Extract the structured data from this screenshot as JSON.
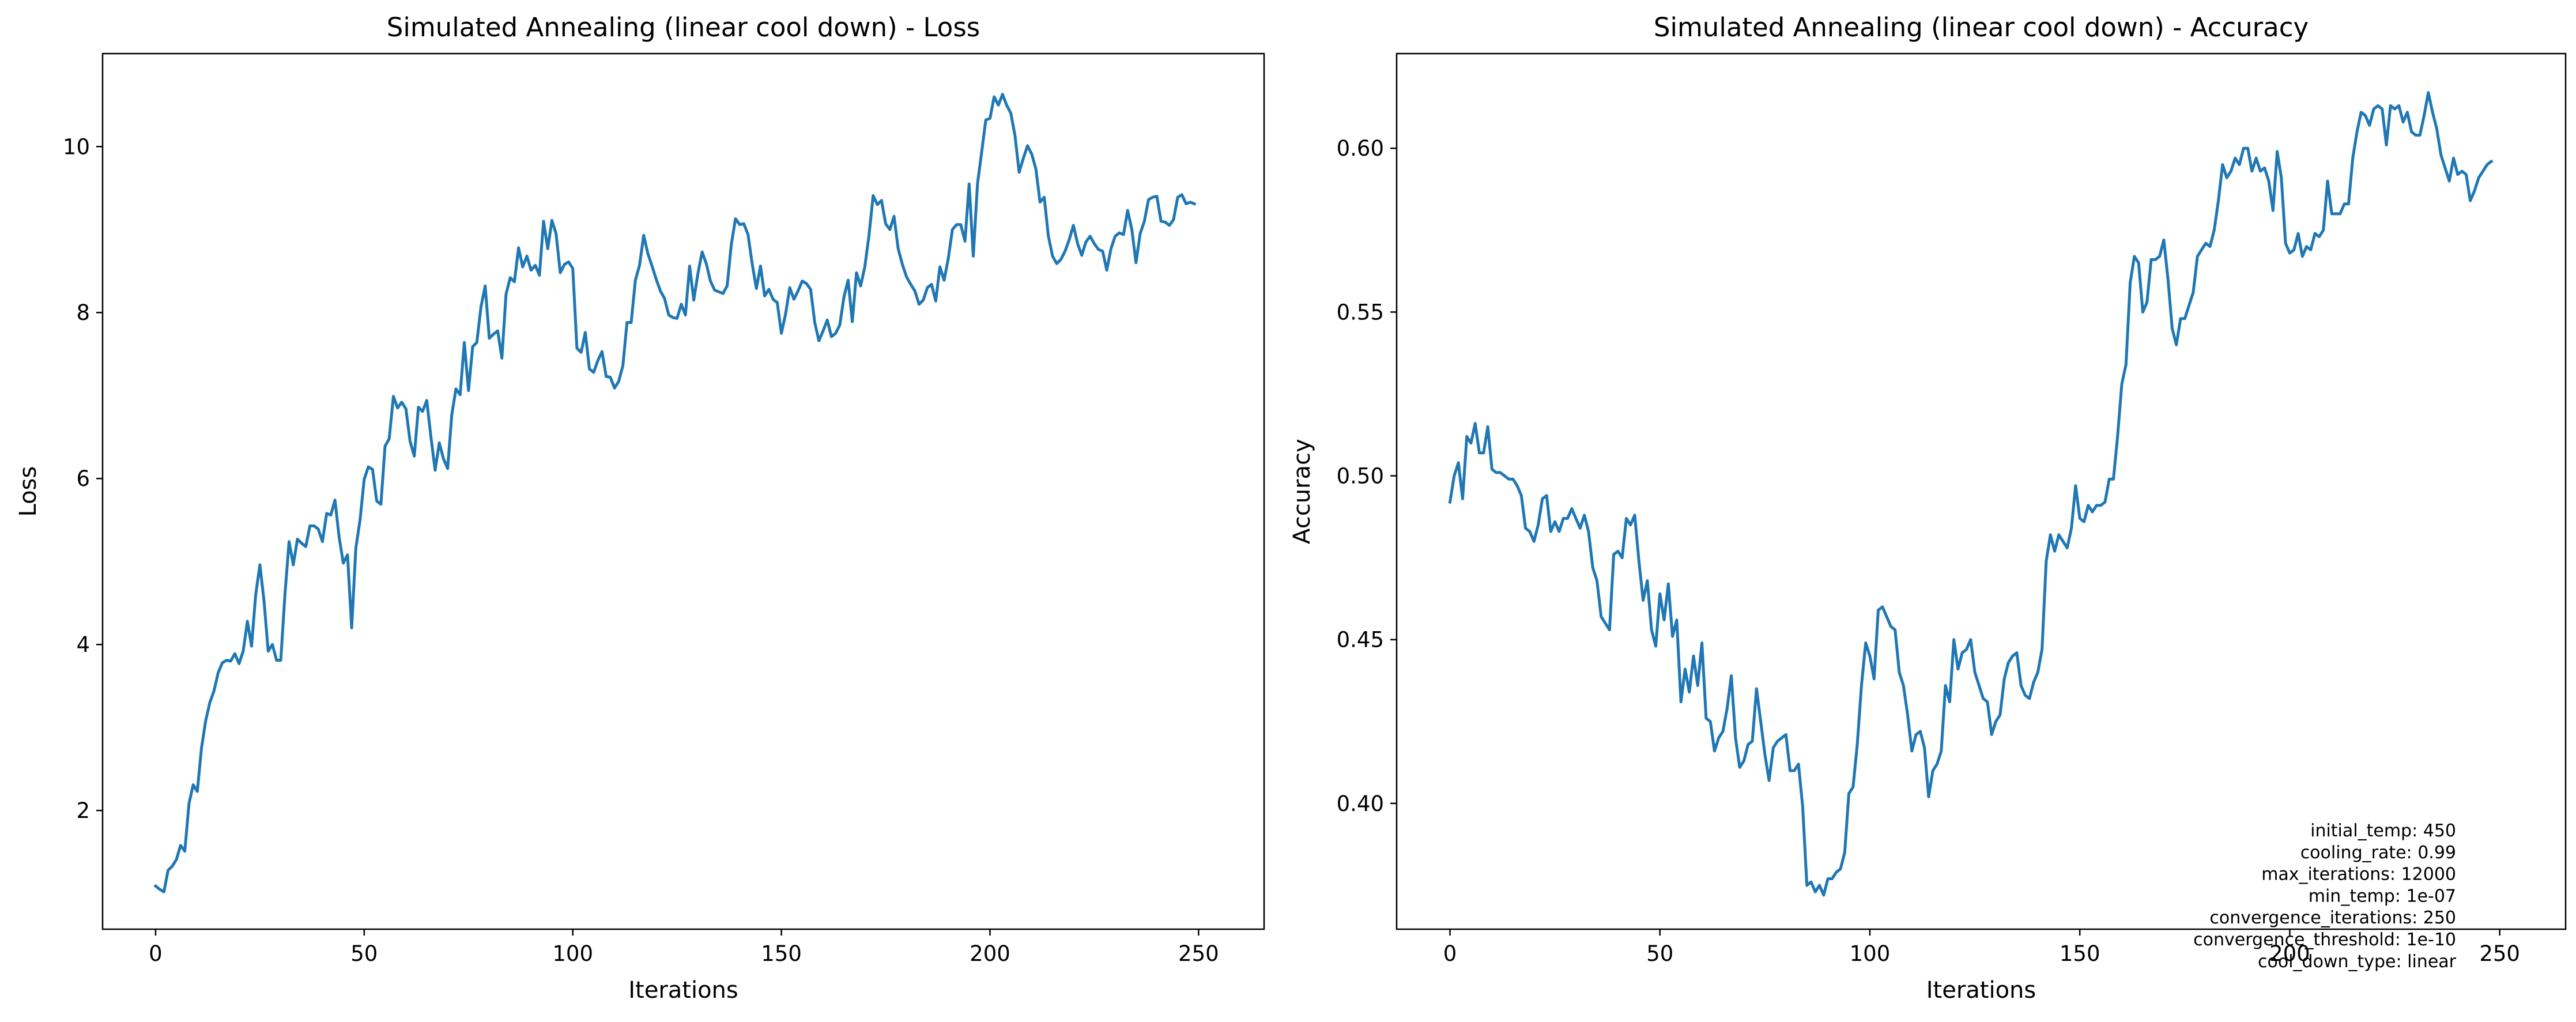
{
  "chart_data": [
    {
      "type": "line",
      "title": "Simulated Annealing (linear cool down) - Loss",
      "xlabel": "Iterations",
      "ylabel": "Loss",
      "xlim": [
        -12.7,
        265.7
      ],
      "ylim": [
        0.57,
        11.12
      ],
      "xticks": [
        0,
        50,
        100,
        150,
        200,
        250
      ],
      "yticks": [
        2,
        4,
        6,
        8,
        10
      ],
      "ytick_labels": [
        "2",
        "4",
        "6",
        "8",
        "10"
      ],
      "grid": false,
      "series": [
        {
          "color": "#1f77b4",
          "x_start": 0,
          "x_step": 1,
          "values": [
            1.09,
            1.05,
            1.02,
            1.28,
            1.33,
            1.41,
            1.58,
            1.51,
            2.08,
            2.31,
            2.23,
            2.75,
            3.08,
            3.3,
            3.44,
            3.66,
            3.78,
            3.81,
            3.8,
            3.89,
            3.77,
            3.92,
            4.28,
            3.98,
            4.6,
            4.96,
            4.52,
            3.92,
            4.0,
            3.81,
            3.81,
            4.6,
            5.24,
            4.96,
            5.27,
            5.22,
            5.18,
            5.43,
            5.43,
            5.39,
            5.24,
            5.58,
            5.56,
            5.74,
            5.29,
            4.98,
            5.08,
            4.2,
            5.16,
            5.5,
            5.99,
            6.14,
            6.11,
            5.73,
            5.69,
            6.39,
            6.48,
            6.99,
            6.85,
            6.92,
            6.84,
            6.45,
            6.27,
            6.86,
            6.81,
            6.94,
            6.5,
            6.1,
            6.43,
            6.24,
            6.12,
            6.77,
            7.08,
            7.01,
            7.64,
            7.06,
            7.59,
            7.64,
            8.07,
            8.32,
            7.69,
            7.74,
            7.78,
            7.45,
            8.22,
            8.42,
            8.37,
            8.78,
            8.55,
            8.68,
            8.51,
            8.57,
            8.45,
            9.1,
            8.77,
            9.11,
            8.95,
            8.48,
            8.58,
            8.61,
            8.53,
            7.57,
            7.52,
            7.76,
            7.32,
            7.28,
            7.42,
            7.53,
            7.23,
            7.22,
            7.09,
            7.17,
            7.36,
            7.88,
            7.88,
            8.39,
            8.57,
            8.93,
            8.71,
            8.56,
            8.4,
            8.26,
            8.17,
            7.97,
            7.94,
            7.93,
            8.1,
            7.97,
            8.56,
            8.15,
            8.47,
            8.73,
            8.59,
            8.38,
            8.27,
            8.25,
            8.23,
            8.32,
            8.82,
            9.13,
            9.06,
            9.07,
            8.94,
            8.59,
            8.29,
            8.56,
            8.2,
            8.28,
            8.16,
            8.12,
            7.75,
            7.98,
            8.3,
            8.16,
            8.26,
            8.38,
            8.35,
            8.28,
            7.88,
            7.66,
            7.78,
            7.91,
            7.71,
            7.75,
            7.85,
            8.19,
            8.39,
            7.89,
            8.48,
            8.32,
            8.55,
            8.93,
            9.41,
            9.3,
            9.35,
            9.07,
            9.0,
            9.16,
            8.77,
            8.58,
            8.43,
            8.34,
            8.26,
            8.1,
            8.15,
            8.3,
            8.34,
            8.14,
            8.55,
            8.39,
            8.65,
            9.0,
            9.06,
            9.06,
            8.86,
            9.55,
            8.68,
            9.55,
            9.93,
            10.32,
            10.34,
            10.6,
            10.5,
            10.63,
            10.5,
            10.4,
            10.13,
            9.69,
            9.86,
            10.01,
            9.91,
            9.73,
            9.33,
            9.39,
            8.92,
            8.68,
            8.59,
            8.64,
            8.74,
            8.88,
            9.05,
            8.83,
            8.69,
            8.85,
            8.92,
            8.83,
            8.76,
            8.74,
            8.51,
            8.77,
            8.92,
            8.96,
            8.94,
            9.23,
            9.0,
            8.6,
            8.95,
            9.1,
            9.36,
            9.39,
            9.4,
            9.1,
            9.09,
            9.05,
            9.12,
            9.39,
            9.42,
            9.31,
            9.33,
            9.31
          ]
        }
      ]
    },
    {
      "type": "line",
      "title": "Simulated Annealing (linear cool down) - Accuracy",
      "xlabel": "Iterations",
      "ylabel": "Accuracy",
      "xlim": [
        -12.7,
        265.7
      ],
      "ylim": [
        0.3616,
        0.6289
      ],
      "xticks": [
        0,
        50,
        100,
        150,
        200,
        250
      ],
      "yticks": [
        0.4,
        0.45,
        0.5,
        0.55,
        0.6
      ],
      "ytick_labels": [
        "0.40",
        "0.45",
        "0.50",
        "0.55",
        "0.60"
      ],
      "grid": false,
      "series": [
        {
          "color": "#1f77b4",
          "x_start": 0,
          "x_step": 1,
          "values": [
            0.492,
            0.5,
            0.504,
            0.493,
            0.512,
            0.51,
            0.516,
            0.507,
            0.507,
            0.515,
            0.502,
            0.501,
            0.501,
            0.5,
            0.499,
            0.499,
            0.497,
            0.494,
            0.484,
            0.483,
            0.48,
            0.485,
            0.493,
            0.494,
            0.483,
            0.486,
            0.483,
            0.487,
            0.487,
            0.49,
            0.487,
            0.484,
            0.488,
            0.483,
            0.472,
            0.468,
            0.457,
            0.455,
            0.453,
            0.476,
            0.477,
            0.475,
            0.487,
            0.485,
            0.488,
            0.474,
            0.462,
            0.468,
            0.453,
            0.448,
            0.464,
            0.456,
            0.467,
            0.451,
            0.456,
            0.431,
            0.441,
            0.434,
            0.445,
            0.436,
            0.449,
            0.426,
            0.425,
            0.416,
            0.42,
            0.422,
            0.429,
            0.439,
            0.42,
            0.411,
            0.413,
            0.418,
            0.419,
            0.435,
            0.425,
            0.415,
            0.407,
            0.417,
            0.419,
            0.42,
            0.421,
            0.41,
            0.41,
            0.412,
            0.399,
            0.375,
            0.376,
            0.373,
            0.375,
            0.372,
            0.377,
            0.377,
            0.379,
            0.38,
            0.385,
            0.403,
            0.405,
            0.418,
            0.436,
            0.449,
            0.445,
            0.438,
            0.459,
            0.46,
            0.457,
            0.454,
            0.453,
            0.44,
            0.436,
            0.427,
            0.416,
            0.421,
            0.422,
            0.417,
            0.402,
            0.41,
            0.412,
            0.416,
            0.436,
            0.431,
            0.45,
            0.441,
            0.446,
            0.447,
            0.45,
            0.44,
            0.436,
            0.432,
            0.431,
            0.421,
            0.425,
            0.427,
            0.438,
            0.443,
            0.445,
            0.446,
            0.436,
            0.433,
            0.432,
            0.437,
            0.44,
            0.447,
            0.474,
            0.482,
            0.477,
            0.482,
            0.48,
            0.478,
            0.484,
            0.497,
            0.487,
            0.486,
            0.491,
            0.489,
            0.491,
            0.491,
            0.492,
            0.499,
            0.499,
            0.512,
            0.528,
            0.534,
            0.559,
            0.567,
            0.565,
            0.55,
            0.553,
            0.566,
            0.566,
            0.567,
            0.572,
            0.56,
            0.545,
            0.54,
            0.548,
            0.548,
            0.552,
            0.556,
            0.567,
            0.569,
            0.571,
            0.57,
            0.575,
            0.584,
            0.595,
            0.591,
            0.593,
            0.597,
            0.595,
            0.6,
            0.6,
            0.593,
            0.597,
            0.593,
            0.594,
            0.59,
            0.581,
            0.599,
            0.591,
            0.571,
            0.568,
            0.569,
            0.574,
            0.567,
            0.57,
            0.569,
            0.574,
            0.573,
            0.575,
            0.59,
            0.58,
            0.58,
            0.58,
            0.583,
            0.583,
            0.597,
            0.605,
            0.611,
            0.61,
            0.607,
            0.612,
            0.613,
            0.612,
            0.601,
            0.613,
            0.612,
            0.613,
            0.608,
            0.611,
            0.605,
            0.604,
            0.604,
            0.61,
            0.617,
            0.611,
            0.606,
            0.598,
            0.594,
            0.59,
            0.597,
            0.592,
            0.593,
            0.592,
            0.584,
            0.587,
            0.591,
            0.593,
            0.595,
            0.596
          ]
        }
      ],
      "annotations": [
        "initial_temp: 450",
        "cooling_rate: 0.99",
        "max_iterations: 12000",
        "min_temp: 1e-07",
        "convergence_iterations: 250",
        "convergence_threshold: 1e-10",
        "cool_down_type: linear"
      ]
    }
  ]
}
